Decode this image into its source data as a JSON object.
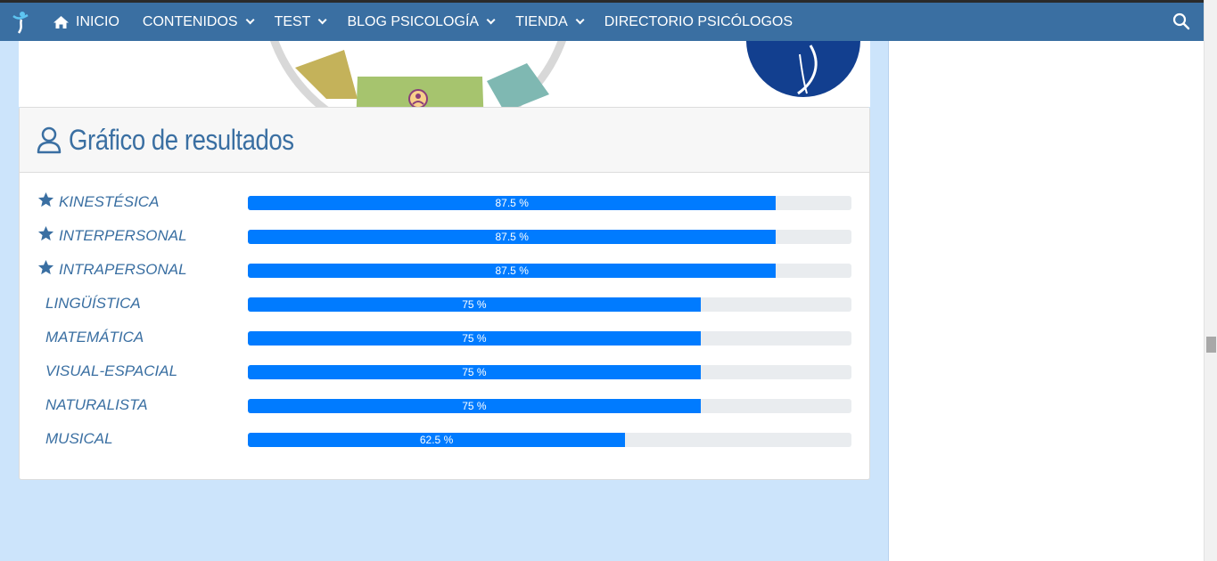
{
  "nav": {
    "items": [
      {
        "label": "INICIO",
        "home": true,
        "dropdown": false
      },
      {
        "label": "CONTENIDOS",
        "dropdown": true
      },
      {
        "label": "TEST",
        "dropdown": true
      },
      {
        "label": "BLOG PSICOLOGÍA",
        "dropdown": true
      },
      {
        "label": "TIENDA",
        "dropdown": true
      },
      {
        "label": "DIRECTORIO PSICÓLOGOS",
        "dropdown": false
      }
    ]
  },
  "panel": {
    "title": "Gráfico de resultados"
  },
  "results": [
    {
      "label": "KINESTÉSICA",
      "value": 87.5,
      "display": "87.5 %",
      "starred": true
    },
    {
      "label": "INTERPERSONAL",
      "value": 87.5,
      "display": "87.5 %",
      "starred": true
    },
    {
      "label": "INTRAPERSONAL",
      "value": 87.5,
      "display": "87.5 %",
      "starred": true
    },
    {
      "label": "LINGÜÍSTICA",
      "value": 75,
      "display": "75 %",
      "starred": false
    },
    {
      "label": "MATEMÁTICA",
      "value": 75,
      "display": "75 %",
      "starred": false
    },
    {
      "label": "VISUAL-ESPACIAL",
      "value": 75,
      "display": "75 %",
      "starred": false
    },
    {
      "label": "NATURALISTA",
      "value": 75,
      "display": "75 %",
      "starred": false
    },
    {
      "label": "MUSICAL",
      "value": 62.5,
      "display": "62.5 %",
      "starred": false
    }
  ],
  "colors": {
    "nav_bg": "#3a6fa2",
    "accent": "#3a6fa2",
    "bar": "#007bff",
    "track": "#e9ecef",
    "page_bg": "#cce4fb"
  }
}
